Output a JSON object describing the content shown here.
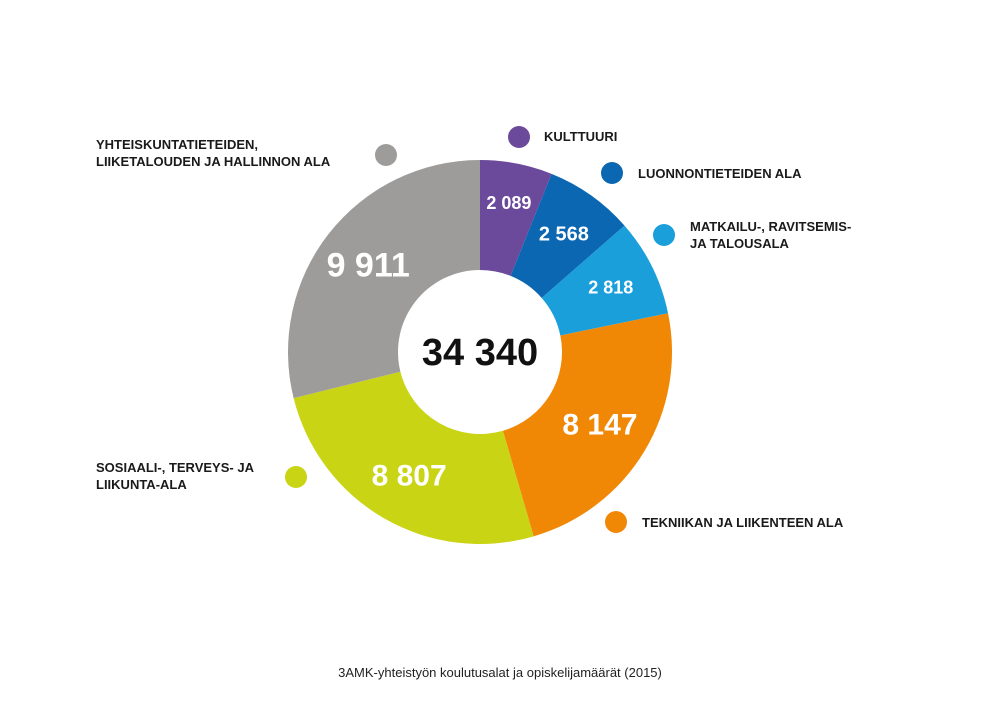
{
  "chart_data": {
    "type": "pie",
    "variant": "donut",
    "total": "34 340",
    "caption": "3AMK-yhteistyön koulutusalat ja opiskelijamäärät (2015)",
    "slices": [
      {
        "value": 2089,
        "label": "2 089",
        "name_lines": [
          "KULTTUURI"
        ],
        "color": "#6b4a9c"
      },
      {
        "value": 2568,
        "label": "2 568",
        "name_lines": [
          "LUONNONTIETEIDEN ALA"
        ],
        "color": "#0b67b2"
      },
      {
        "value": 2818,
        "label": "2 818",
        "name_lines": [
          "MATKAILU-, RAVITSEMIS-",
          "JA TALOUSALA"
        ],
        "color": "#1a9fdb"
      },
      {
        "value": 8147,
        "label": "8 147",
        "name_lines": [
          "TEKNIIKAN JA LIIKENTEEN ALA"
        ],
        "color": "#f18805"
      },
      {
        "value": 8807,
        "label": "8 807",
        "name_lines": [
          "SOSIAALI-, TERVEYS- JA",
          "LIIKUNTA-ALA"
        ],
        "color": "#c8d414"
      },
      {
        "value": 9911,
        "label": "9 911",
        "name_lines": [
          "YHTEISKUNTATIETEIDEN,",
          "LIIKETALOUDEN JA HALLINNON ALA"
        ],
        "color": "#9d9c9b"
      }
    ]
  }
}
